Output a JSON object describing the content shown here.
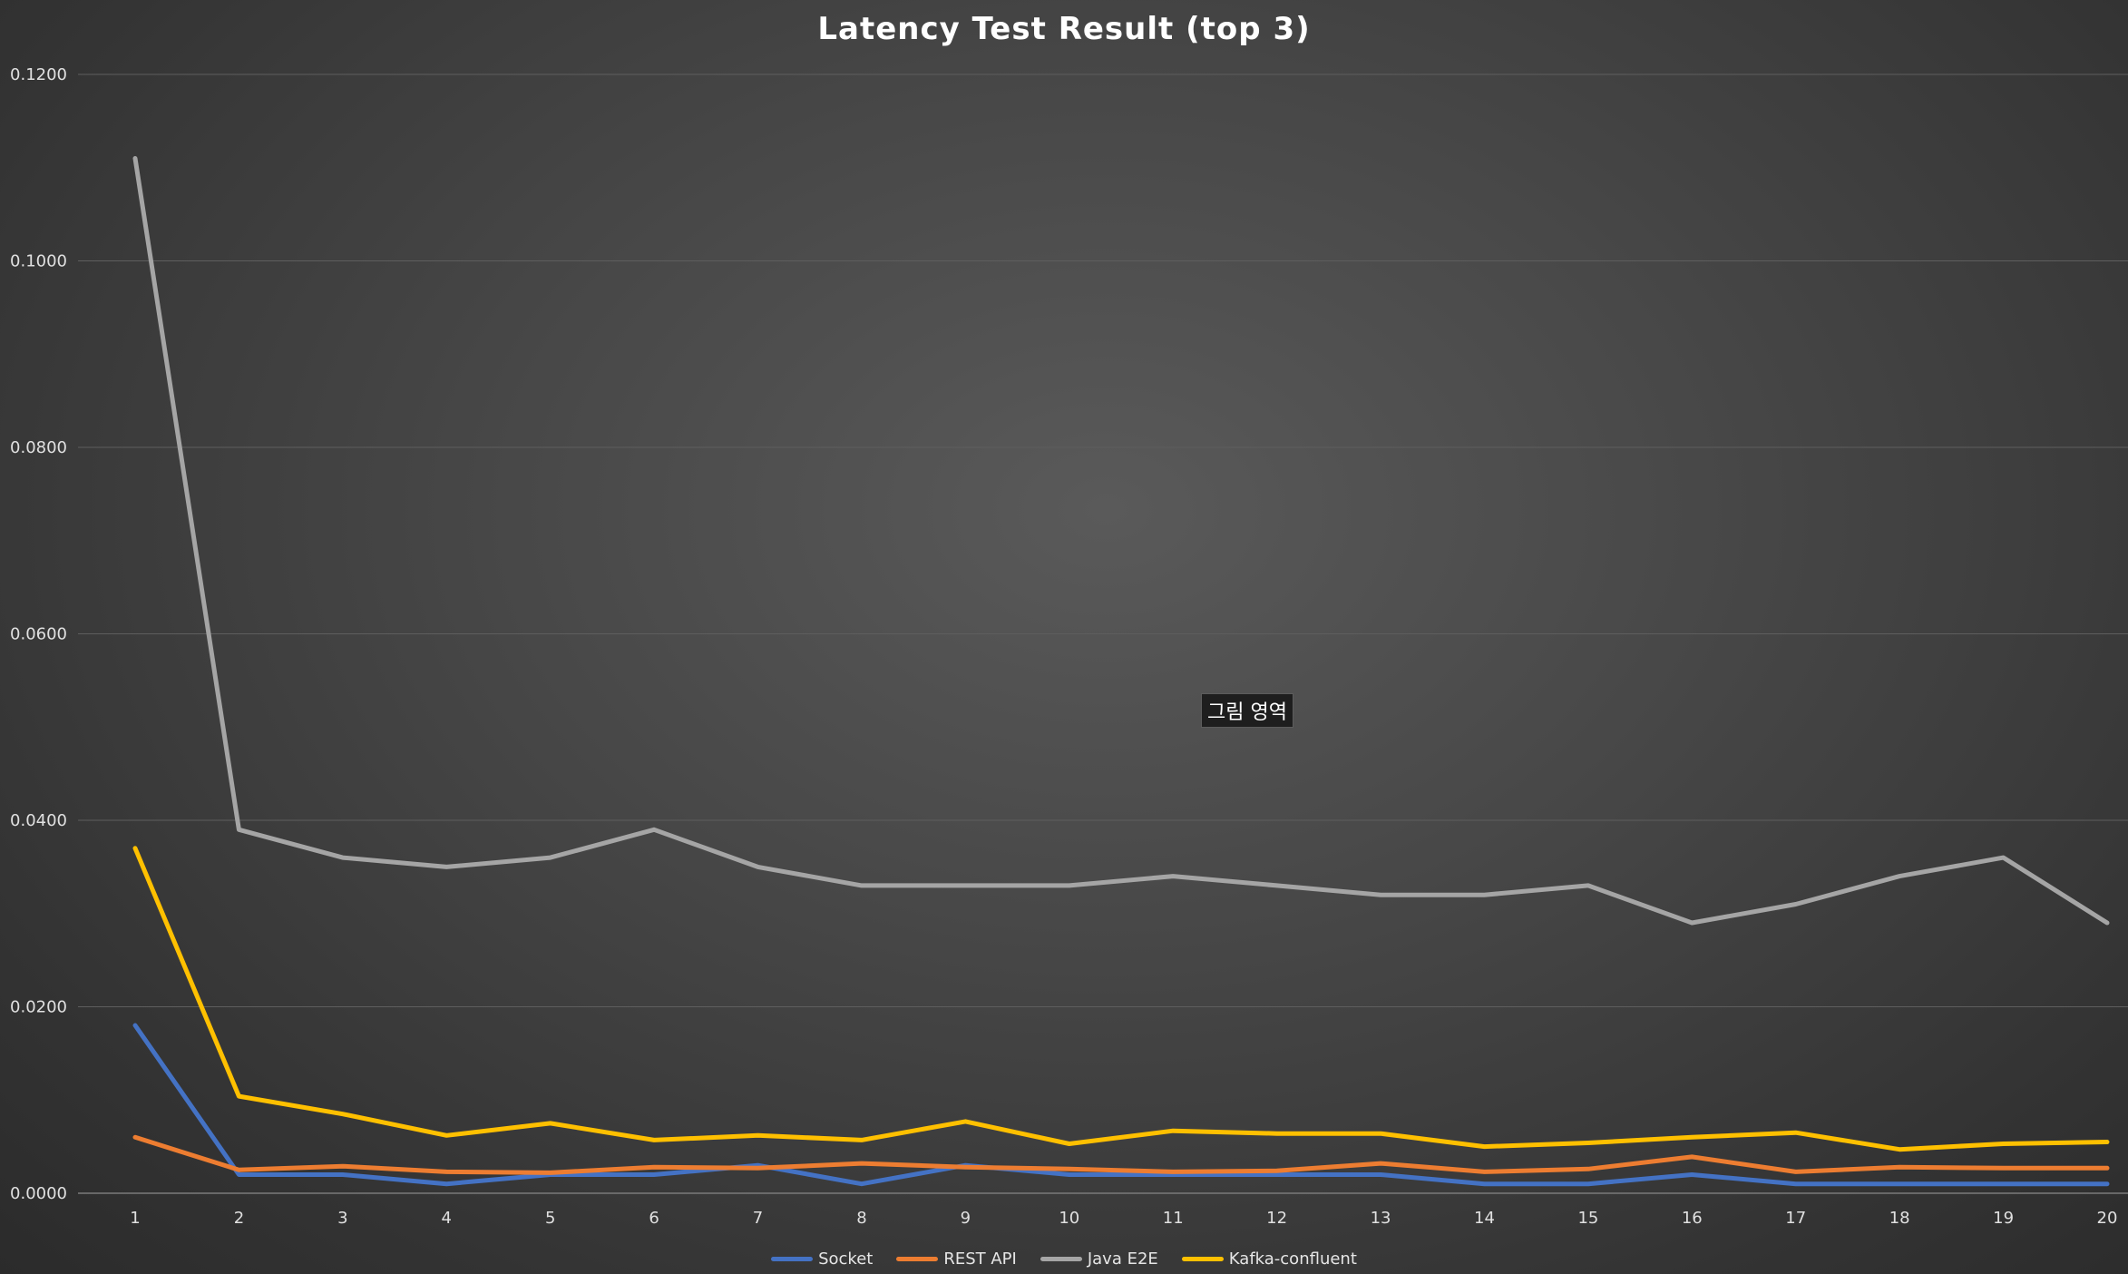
{
  "chart_data": {
    "type": "line",
    "title": "Latency Test Result (top 3)",
    "xlabel": "",
    "ylabel": "",
    "categories": [
      "1",
      "2",
      "3",
      "4",
      "5",
      "6",
      "7",
      "8",
      "9",
      "10",
      "11",
      "12",
      "13",
      "14",
      "15",
      "16",
      "17",
      "18",
      "19",
      "20"
    ],
    "ylim": [
      0,
      0.12
    ],
    "yticks": [
      "0.0000",
      "0.0200",
      "0.0400",
      "0.0600",
      "0.0800",
      "0.1000",
      "0.1200"
    ],
    "ytick_values": [
      0,
      0.02,
      0.04,
      0.06,
      0.08,
      0.1,
      0.12
    ],
    "grid": "horizontal",
    "legend_position": "bottom",
    "series": [
      {
        "name": "Socket",
        "color": "#4472c4",
        "values": [
          0.018,
          0.002,
          0.002,
          0.001,
          0.002,
          0.002,
          0.003,
          0.001,
          0.003,
          0.002,
          0.002,
          0.002,
          0.002,
          0.001,
          0.001,
          0.002,
          0.001,
          0.001,
          0.001,
          0.001
        ]
      },
      {
        "name": "REST API",
        "color": "#ed7d31",
        "values": [
          0.006,
          0.0025,
          0.0029,
          0.0023,
          0.0022,
          0.0028,
          0.0027,
          0.0032,
          0.0028,
          0.0026,
          0.0023,
          0.0024,
          0.0032,
          0.0023,
          0.0026,
          0.0039,
          0.0023,
          0.0028,
          0.0027,
          0.0027
        ]
      },
      {
        "name": "Java E2E",
        "color": "#a5a5a5",
        "values": [
          0.111,
          0.039,
          0.036,
          0.035,
          0.036,
          0.039,
          0.035,
          0.033,
          0.033,
          0.033,
          0.034,
          0.033,
          0.032,
          0.032,
          0.033,
          0.029,
          0.031,
          0.034,
          0.036,
          0.029
        ]
      },
      {
        "name": "Kafka-confluent",
        "color": "#ffc000",
        "values": [
          0.037,
          0.0104,
          0.0085,
          0.0062,
          0.0075,
          0.0057,
          0.0062,
          0.0057,
          0.0077,
          0.0053,
          0.0067,
          0.0064,
          0.0064,
          0.005,
          0.0054,
          0.006,
          0.0065,
          0.0047,
          0.0053,
          0.0055
        ]
      }
    ]
  },
  "tooltip": {
    "label": "그림 영역"
  }
}
